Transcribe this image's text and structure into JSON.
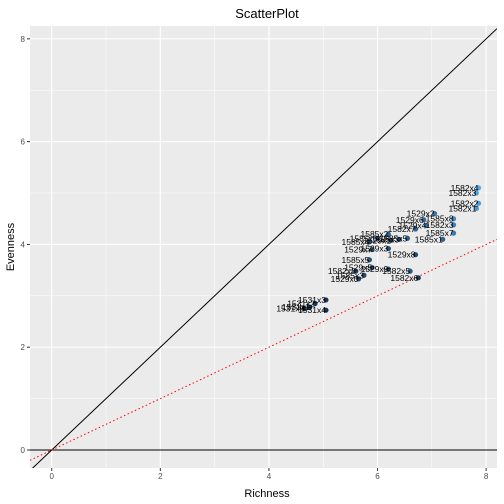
{
  "chart_data": {
    "type": "scatter",
    "title": "ScatterPlot",
    "xlabel": "Richness",
    "ylabel": "Evenness",
    "xlim": [
      -0.4,
      8.2
    ],
    "ylim": [
      -0.35,
      8.25
    ],
    "xticks": [
      0,
      2,
      4,
      6,
      8
    ],
    "yticks": [
      0,
      2,
      4,
      6,
      8
    ],
    "grid": true,
    "panel_background": "#ebebeb",
    "grid_color": "#ffffff",
    "colorscale": [
      "#132b43",
      "#56b1f7"
    ],
    "reference_lines": [
      {
        "name": "identity",
        "intercept": 0,
        "slope": 1,
        "color": "#000000",
        "style": "solid"
      },
      {
        "name": "hline",
        "intercept": 0,
        "slope": 0,
        "color": "#000000",
        "style": "solid"
      },
      {
        "name": "regression",
        "intercept": 0,
        "slope": 0.5,
        "color": "#ff0000",
        "style": "dotted"
      }
    ],
    "points": [
      {
        "label": "1582x4",
        "x": 7.86,
        "y": 5.1,
        "shade": 0.95
      },
      {
        "label": "1582x3",
        "x": 7.82,
        "y": 5.0,
        "shade": 0.9
      },
      {
        "label": "1582x2",
        "x": 7.86,
        "y": 4.8,
        "shade": 0.85
      },
      {
        "label": "1582x1",
        "x": 7.82,
        "y": 4.7,
        "shade": 0.8
      },
      {
        "label": "1529x2",
        "x": 7.05,
        "y": 4.6,
        "shade": 0.55
      },
      {
        "label": "1585x8",
        "x": 7.4,
        "y": 4.5,
        "shade": 0.7
      },
      {
        "label": "1529x6",
        "x": 6.85,
        "y": 4.48,
        "shade": 0.5
      },
      {
        "label": "1582x3",
        "x": 7.4,
        "y": 4.38,
        "shade": 0.65
      },
      {
        "label": "1529x4",
        "x": 6.9,
        "y": 4.37,
        "shade": 0.55
      },
      {
        "label": "1585x7",
        "x": 7.4,
        "y": 4.22,
        "shade": 0.6
      },
      {
        "label": "1582x7",
        "x": 6.7,
        "y": 4.3,
        "shade": 0.45
      },
      {
        "label": "1585x1",
        "x": 7.2,
        "y": 4.1,
        "shade": 0.4
      },
      {
        "label": "1585x2",
        "x": 6.2,
        "y": 4.2,
        "shade": 0.45
      },
      {
        "label": "1585x5",
        "x": 6.55,
        "y": 4.12,
        "shade": 0.35
      },
      {
        "label": "1585x6",
        "x": 6.0,
        "y": 4.12,
        "shade": 0.4
      },
      {
        "label": "1585x3",
        "x": 6.4,
        "y": 4.1,
        "shade": 0.35
      },
      {
        "label": "1529x1",
        "x": 6.25,
        "y": 4.08,
        "shade": 0.3
      },
      {
        "label": "1585x4",
        "x": 5.85,
        "y": 4.05,
        "shade": 0.35
      },
      {
        "label": "1529x3",
        "x": 6.2,
        "y": 3.92,
        "shade": 0.3
      },
      {
        "label": "1529x7",
        "x": 5.9,
        "y": 3.9,
        "shade": 0.3
      },
      {
        "label": "1529x8",
        "x": 6.7,
        "y": 3.8,
        "shade": 0.25
      },
      {
        "label": "1585x5",
        "x": 5.85,
        "y": 3.7,
        "shade": 0.3
      },
      {
        "label": "1529x5",
        "x": 5.9,
        "y": 3.55,
        "shade": 0.25
      },
      {
        "label": "1529x9",
        "x": 6.2,
        "y": 3.52,
        "shade": 0.3
      },
      {
        "label": "1582x5",
        "x": 6.6,
        "y": 3.48,
        "shade": 0.35
      },
      {
        "label": "1582x8",
        "x": 5.6,
        "y": 3.48,
        "shade": 0.2
      },
      {
        "label": "1585x3",
        "x": 5.75,
        "y": 3.4,
        "shade": 0.25
      },
      {
        "label": "1582x6",
        "x": 6.75,
        "y": 3.35,
        "shade": 0.1
      },
      {
        "label": "1529x0",
        "x": 5.65,
        "y": 3.33,
        "shade": 0.2
      },
      {
        "label": "1531x3",
        "x": 5.05,
        "y": 2.92,
        "shade": 0.1
      },
      {
        "label": "1531x2",
        "x": 4.85,
        "y": 2.85,
        "shade": 0.1
      },
      {
        "label": "1531x1",
        "x": 4.75,
        "y": 2.78,
        "shade": 0.05
      },
      {
        "label": "1531x5",
        "x": 4.65,
        "y": 2.75,
        "shade": 0.05
      },
      {
        "label": "1531x4",
        "x": 5.05,
        "y": 2.72,
        "shade": 0.05
      }
    ]
  }
}
